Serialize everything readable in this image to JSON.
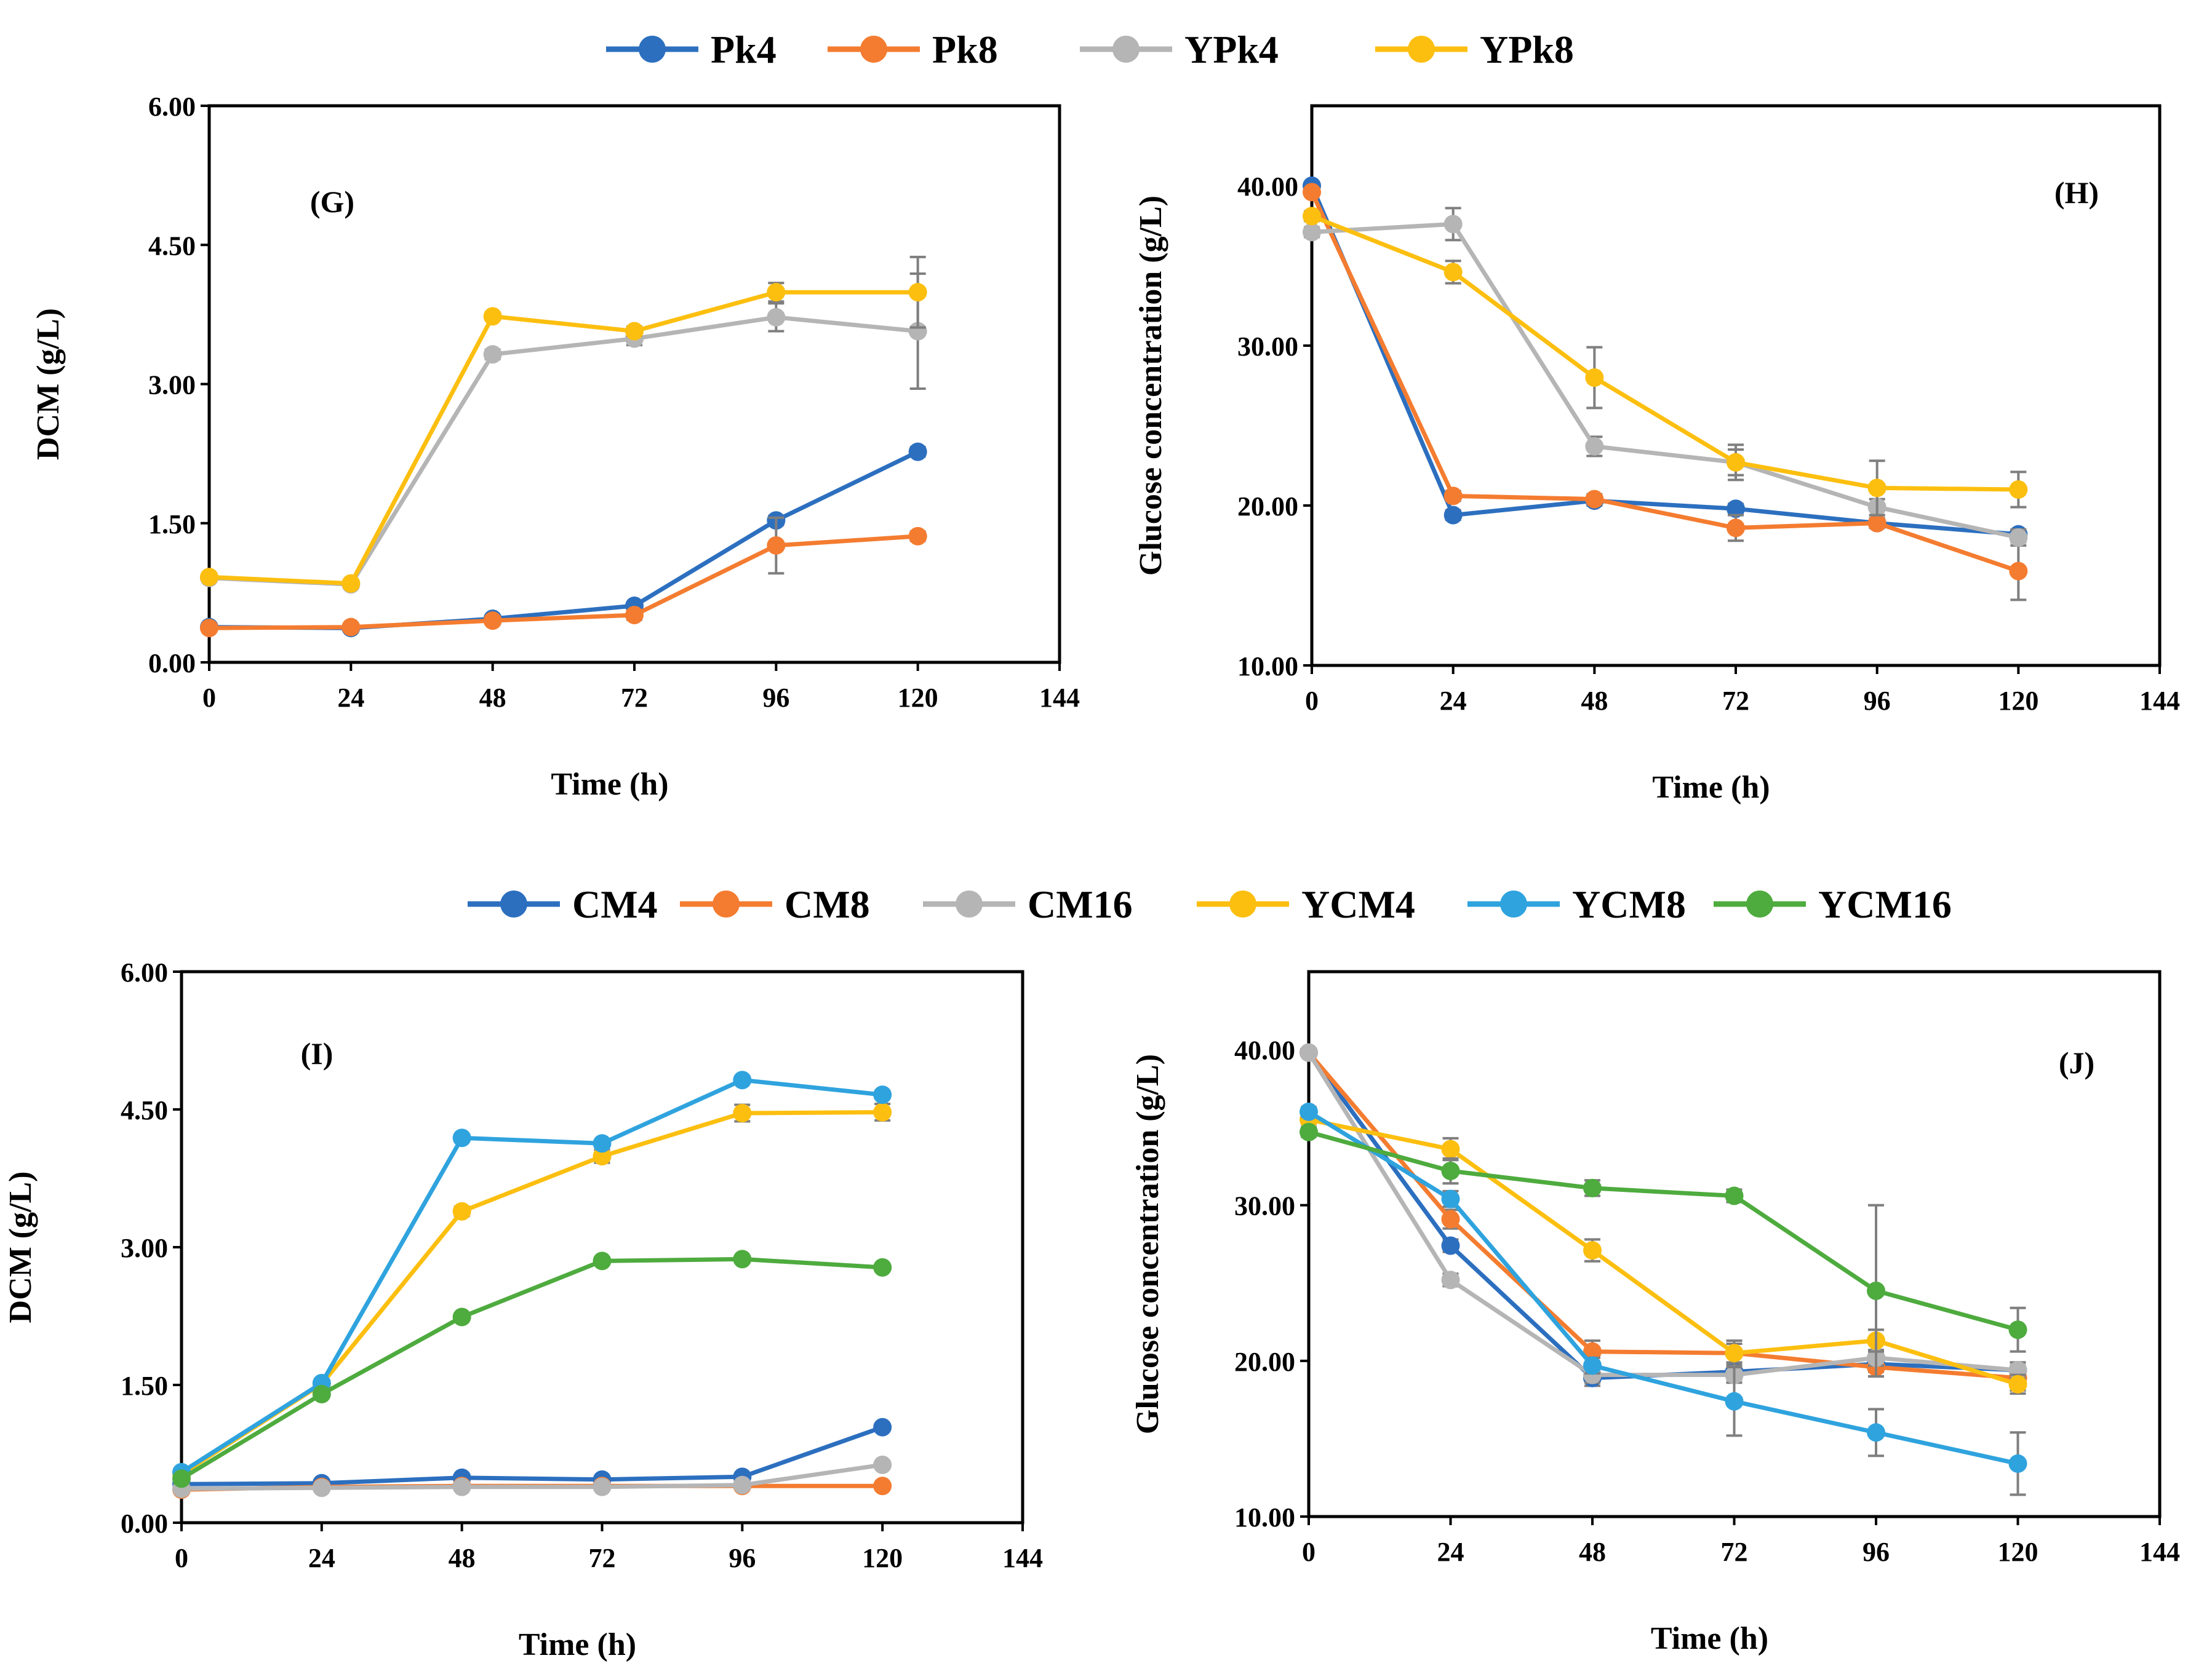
{
  "figure": {
    "legend_top": [
      {
        "name": "Pk4",
        "color": "#2C6FBF"
      },
      {
        "name": "Pk8",
        "color": "#F47C30"
      },
      {
        "name": "YPk4",
        "color": "#B5B5B5"
      },
      {
        "name": "YPk8",
        "color": "#FCBF10"
      }
    ],
    "legend_bottom": [
      {
        "name": "CM4",
        "color": "#2C6FBF"
      },
      {
        "name": "CM8",
        "color": "#F47C30"
      },
      {
        "name": "CM16",
        "color": "#B5B5B5"
      },
      {
        "name": "YCM4",
        "color": "#FCBF10"
      },
      {
        "name": "YCM8",
        "color": "#2FA3DE"
      },
      {
        "name": "YCM16",
        "color": "#4EAB3E"
      }
    ]
  },
  "chart_data": [
    {
      "type": "line",
      "panel_label": "(G)",
      "xlabel": "Time (h)",
      "ylabel": "DCM (g/L)",
      "x": [
        0,
        24,
        48,
        72,
        96,
        120
      ],
      "xticks": [
        "0",
        "24",
        "48",
        "72",
        "96",
        "120",
        "144"
      ],
      "yticks": [
        "0.00",
        "1.50",
        "3.00",
        "4.50",
        "6.00"
      ],
      "xlim": [
        0,
        144
      ],
      "ylim": [
        0,
        6
      ],
      "series": [
        {
          "name": "Pk4",
          "color": "#2C6FBF",
          "values": [
            0.38,
            0.37,
            0.47,
            0.61,
            1.53,
            2.27
          ],
          "errors": [
            0.02,
            0.02,
            0.03,
            0.03,
            0.05,
            0.05
          ]
        },
        {
          "name": "Pk8",
          "color": "#F47C30",
          "values": [
            0.37,
            0.38,
            0.45,
            0.51,
            1.26,
            1.36
          ],
          "errors": [
            0.02,
            0.02,
            0.03,
            0.05,
            0.3,
            0.05
          ]
        },
        {
          "name": "YPk4",
          "color": "#B5B5B5",
          "values": [
            0.91,
            0.84,
            3.32,
            3.49,
            3.72,
            3.57
          ],
          "errors": [
            0.03,
            0.03,
            0.05,
            0.07,
            0.15,
            0.62
          ]
        },
        {
          "name": "YPk8",
          "color": "#FCBF10",
          "values": [
            0.92,
            0.85,
            3.73,
            3.57,
            3.99,
            3.99
          ],
          "errors": [
            0.03,
            0.03,
            0.04,
            0.05,
            0.1,
            0.38
          ]
        }
      ]
    },
    {
      "type": "line",
      "panel_label": "(H)",
      "xlabel": "Time (h)",
      "ylabel": "Glucose concentration  (g/L)",
      "x": [
        0,
        24,
        48,
        72,
        96,
        120
      ],
      "xticks": [
        "0",
        "24",
        "48",
        "72",
        "96",
        "120",
        "144"
      ],
      "yticks": [
        "10.00",
        "20.00",
        "30.00",
        "40.00"
      ],
      "xlim": [
        0,
        144
      ],
      "ylim": [
        10,
        45
      ],
      "series": [
        {
          "name": "Pk4",
          "color": "#2C6FBF",
          "values": [
            40.0,
            19.4,
            20.3,
            19.8,
            18.9,
            18.2
          ],
          "errors": [
            0.2,
            0.3,
            0.3,
            0.3,
            0.3,
            0.3
          ]
        },
        {
          "name": "Pk8",
          "color": "#F47C30",
          "values": [
            39.6,
            20.6,
            20.4,
            18.6,
            18.9,
            15.9
          ],
          "errors": [
            0.2,
            0.3,
            0.3,
            0.8,
            0.3,
            1.8
          ]
        },
        {
          "name": "YPk4",
          "color": "#B5B5B5",
          "values": [
            37.1,
            37.6,
            23.7,
            22.7,
            19.9,
            18.0
          ],
          "errors": [
            0.3,
            1.0,
            0.6,
            0.8,
            0.5,
            0.5
          ]
        },
        {
          "name": "YPk8",
          "color": "#FCBF10",
          "values": [
            38.1,
            34.6,
            28.0,
            22.7,
            21.1,
            21.0
          ],
          "errors": [
            0.3,
            0.7,
            1.9,
            1.1,
            1.7,
            1.1
          ]
        }
      ]
    },
    {
      "type": "line",
      "panel_label": "(I)",
      "xlabel": "Time (h)",
      "ylabel": "DCM (g/L)",
      "x": [
        0,
        24,
        48,
        72,
        96,
        120
      ],
      "xticks": [
        "0",
        "24",
        "48",
        "72",
        "96",
        "120",
        "144"
      ],
      "yticks": [
        "0.00",
        "1.50",
        "3.00",
        "4.50",
        "6.00"
      ],
      "xlim": [
        0,
        144
      ],
      "ylim": [
        0,
        6
      ],
      "series": [
        {
          "name": "CM4",
          "color": "#2C6FBF",
          "values": [
            0.42,
            0.43,
            0.49,
            0.47,
            0.5,
            1.04
          ],
          "errors": [
            0.02,
            0.02,
            0.02,
            0.02,
            0.02,
            0.03
          ]
        },
        {
          "name": "CM8",
          "color": "#F47C30",
          "values": [
            0.36,
            0.39,
            0.4,
            0.4,
            0.4,
            0.4
          ],
          "errors": [
            0.02,
            0.02,
            0.02,
            0.02,
            0.02,
            0.02
          ]
        },
        {
          "name": "CM16",
          "color": "#B5B5B5",
          "values": [
            0.37,
            0.38,
            0.39,
            0.39,
            0.41,
            0.63
          ],
          "errors": [
            0.02,
            0.02,
            0.02,
            0.02,
            0.02,
            0.03
          ]
        },
        {
          "name": "YCM4",
          "color": "#FCBF10",
          "values": [
            0.53,
            1.51,
            3.39,
            3.99,
            4.46,
            4.47
          ],
          "errors": [
            0.03,
            0.03,
            0.05,
            0.07,
            0.09,
            0.09
          ]
        },
        {
          "name": "YCM8",
          "color": "#2FA3DE",
          "values": [
            0.55,
            1.52,
            4.19,
            4.13,
            4.82,
            4.66
          ],
          "errors": [
            0.03,
            0.03,
            0.04,
            0.04,
            0.04,
            0.04
          ]
        },
        {
          "name": "YCM16",
          "color": "#4EAB3E",
          "values": [
            0.48,
            1.4,
            2.24,
            2.85,
            2.87,
            2.78
          ],
          "errors": [
            0.03,
            0.03,
            0.03,
            0.03,
            0.03,
            0.03
          ]
        }
      ]
    },
    {
      "type": "line",
      "panel_label": "(J)",
      "xlabel": "Time (h)",
      "ylabel": "Glucose concentration  (g/L)",
      "x": [
        0,
        24,
        48,
        72,
        96,
        120
      ],
      "xticks": [
        "0",
        "24",
        "48",
        "72",
        "96",
        "120",
        "144"
      ],
      "yticks": [
        "10.00",
        "20.00",
        "30.00",
        "40.00"
      ],
      "xlim": [
        0,
        144
      ],
      "ylim": [
        10,
        45
      ],
      "series": [
        {
          "name": "CM4",
          "color": "#2C6FBF",
          "values": [
            39.8,
            27.4,
            18.9,
            19.3,
            19.8,
            19.4
          ],
          "errors": [
            0.2,
            0.4,
            0.5,
            0.5,
            0.5,
            0.5
          ]
        },
        {
          "name": "CM8",
          "color": "#F47C30",
          "values": [
            39.8,
            29.1,
            20.6,
            20.5,
            19.6,
            18.9
          ],
          "errors": [
            0.2,
            0.6,
            0.7,
            0.8,
            0.6,
            0.8
          ]
        },
        {
          "name": "CM16",
          "color": "#B5B5B5",
          "values": [
            39.8,
            25.2,
            19.1,
            19.1,
            20.2,
            19.4
          ],
          "errors": [
            0.2,
            0.4,
            0.5,
            0.5,
            0.5,
            0.5
          ]
        },
        {
          "name": "YCM4",
          "color": "#FCBF10",
          "values": [
            35.5,
            33.6,
            27.1,
            20.5,
            21.3,
            18.5
          ],
          "errors": [
            0.3,
            0.7,
            0.7,
            0.6,
            0.7,
            0.6
          ]
        },
        {
          "name": "YCM8",
          "color": "#2FA3DE",
          "values": [
            36.0,
            30.4,
            19.7,
            17.4,
            15.4,
            13.4
          ],
          "errors": [
            0.3,
            0.5,
            0.5,
            2.2,
            1.5,
            2.0
          ]
        },
        {
          "name": "YCM16",
          "color": "#4EAB3E",
          "values": [
            34.7,
            32.2,
            31.1,
            30.6,
            24.5,
            22.0
          ],
          "errors": [
            0.3,
            0.8,
            0.5,
            0.4,
            5.5,
            1.4
          ]
        }
      ]
    }
  ]
}
